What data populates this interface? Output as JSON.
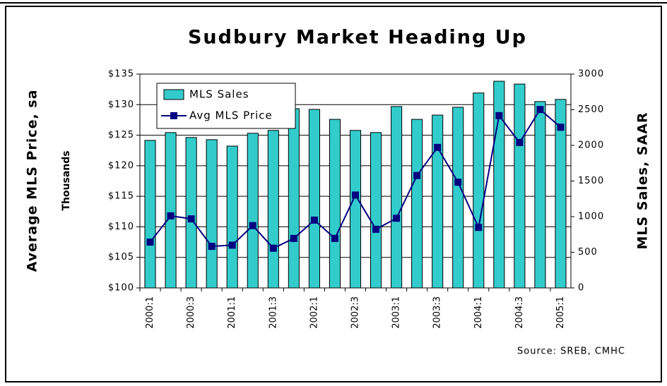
{
  "chart_data": {
    "type": "bar-line",
    "title": "Sudbury Market Heading Up",
    "ylabel": "Average MLS Price, sa",
    "ylabel_note": "Thousands",
    "y2label": "MLS Sales, SAAR",
    "source": "Source: SREB, CMHC",
    "categories": [
      "2000:1",
      null,
      "2000:3",
      null,
      "2001:1",
      null,
      "2001:3",
      null,
      "2002:1",
      null,
      "2002:3",
      null,
      "2003:1",
      null,
      "2003:3",
      null,
      "2004:1",
      null,
      "2004:3",
      null,
      "2005:1"
    ],
    "series": [
      {
        "name": "MLS Sales",
        "type": "bar",
        "axis": "y2",
        "color": "#33cccc",
        "values": [
          2070,
          2180,
          2110,
          2080,
          1990,
          2170,
          2210,
          2515,
          2505,
          2365,
          2210,
          2180,
          2545,
          2365,
          2425,
          2535,
          2735,
          2900,
          2860,
          2615,
          2645
        ]
      },
      {
        "name": "Avg MLS Price",
        "type": "line",
        "color": "#000080",
        "values": [
          107.5,
          111.8,
          111.3,
          106.8,
          107.0,
          110.2,
          106.5,
          108.1,
          111.1,
          108.1,
          115.2,
          109.6,
          111.4,
          118.4,
          123.0,
          117.3,
          109.9,
          128.2,
          123.8,
          129.2,
          126.3
        ]
      }
    ],
    "ylim": [
      100,
      135
    ],
    "yticks": [
      {
        "value": 100,
        "label": "$100"
      },
      {
        "value": 105,
        "label": "$105"
      },
      {
        "value": 110,
        "label": "$110"
      },
      {
        "value": 115,
        "label": "$115"
      },
      {
        "value": 120,
        "label": "$120"
      },
      {
        "value": 125,
        "label": "$125"
      },
      {
        "value": 130,
        "label": "$130"
      },
      {
        "value": 135,
        "label": "$135"
      }
    ],
    "y2lim": [
      0,
      3000
    ],
    "y2ticks": [
      0,
      500,
      1000,
      1500,
      2000,
      2500,
      3000
    ],
    "grid": true,
    "legend": "upper left"
  }
}
